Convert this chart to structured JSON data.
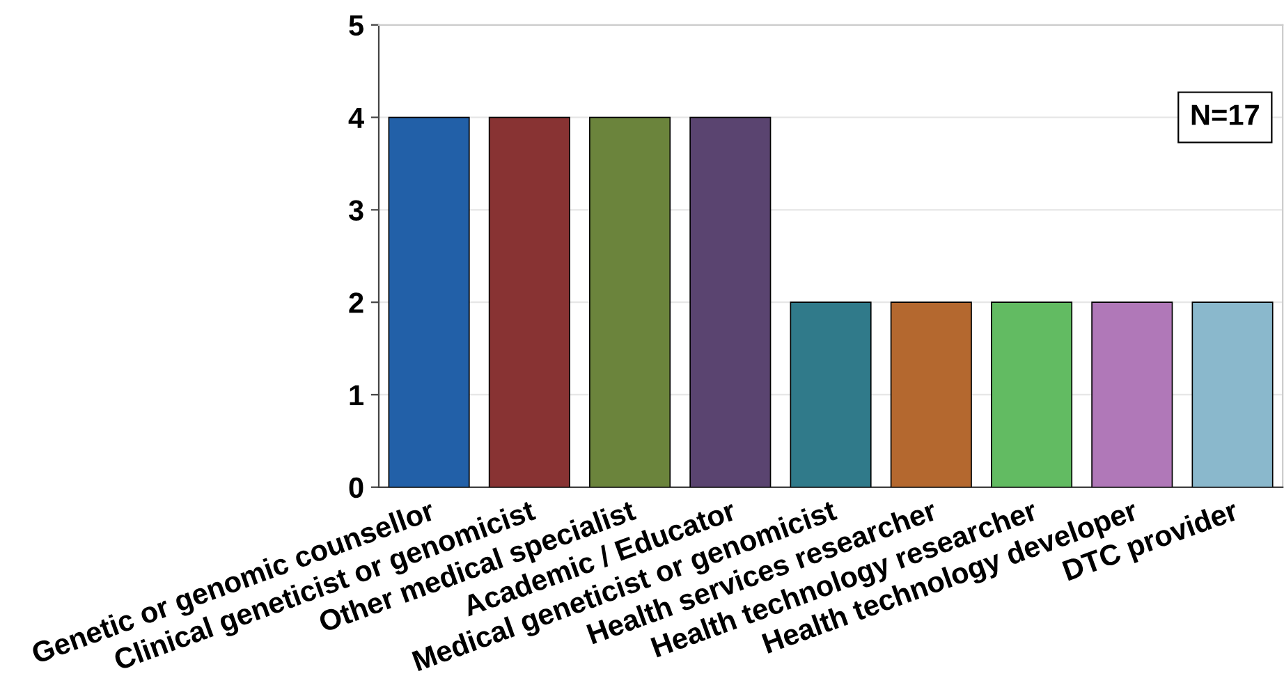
{
  "chart_data": {
    "type": "bar",
    "categories": [
      "Genetic or genomic counsellor",
      "Clinical geneticist or genomicist",
      "Other medical specialist",
      "Academic / Educator",
      "Medical geneticist or genomicist",
      "Health services researcher",
      "Health technology researcher",
      "Health technology developer",
      "DTC provider"
    ],
    "values": [
      4,
      4,
      4,
      4,
      2,
      2,
      2,
      2,
      2
    ],
    "colors": [
      "#2260a8",
      "#883333",
      "#6b843c",
      "#5a4470",
      "#307a8a",
      "#b4682f",
      "#62bb62",
      "#b078b8",
      "#8ab8cc"
    ],
    "ylim": [
      0,
      5
    ],
    "yticks": [
      0,
      1,
      2,
      3,
      4,
      5
    ],
    "grid": "y",
    "annotations": [
      "N=17"
    ]
  }
}
